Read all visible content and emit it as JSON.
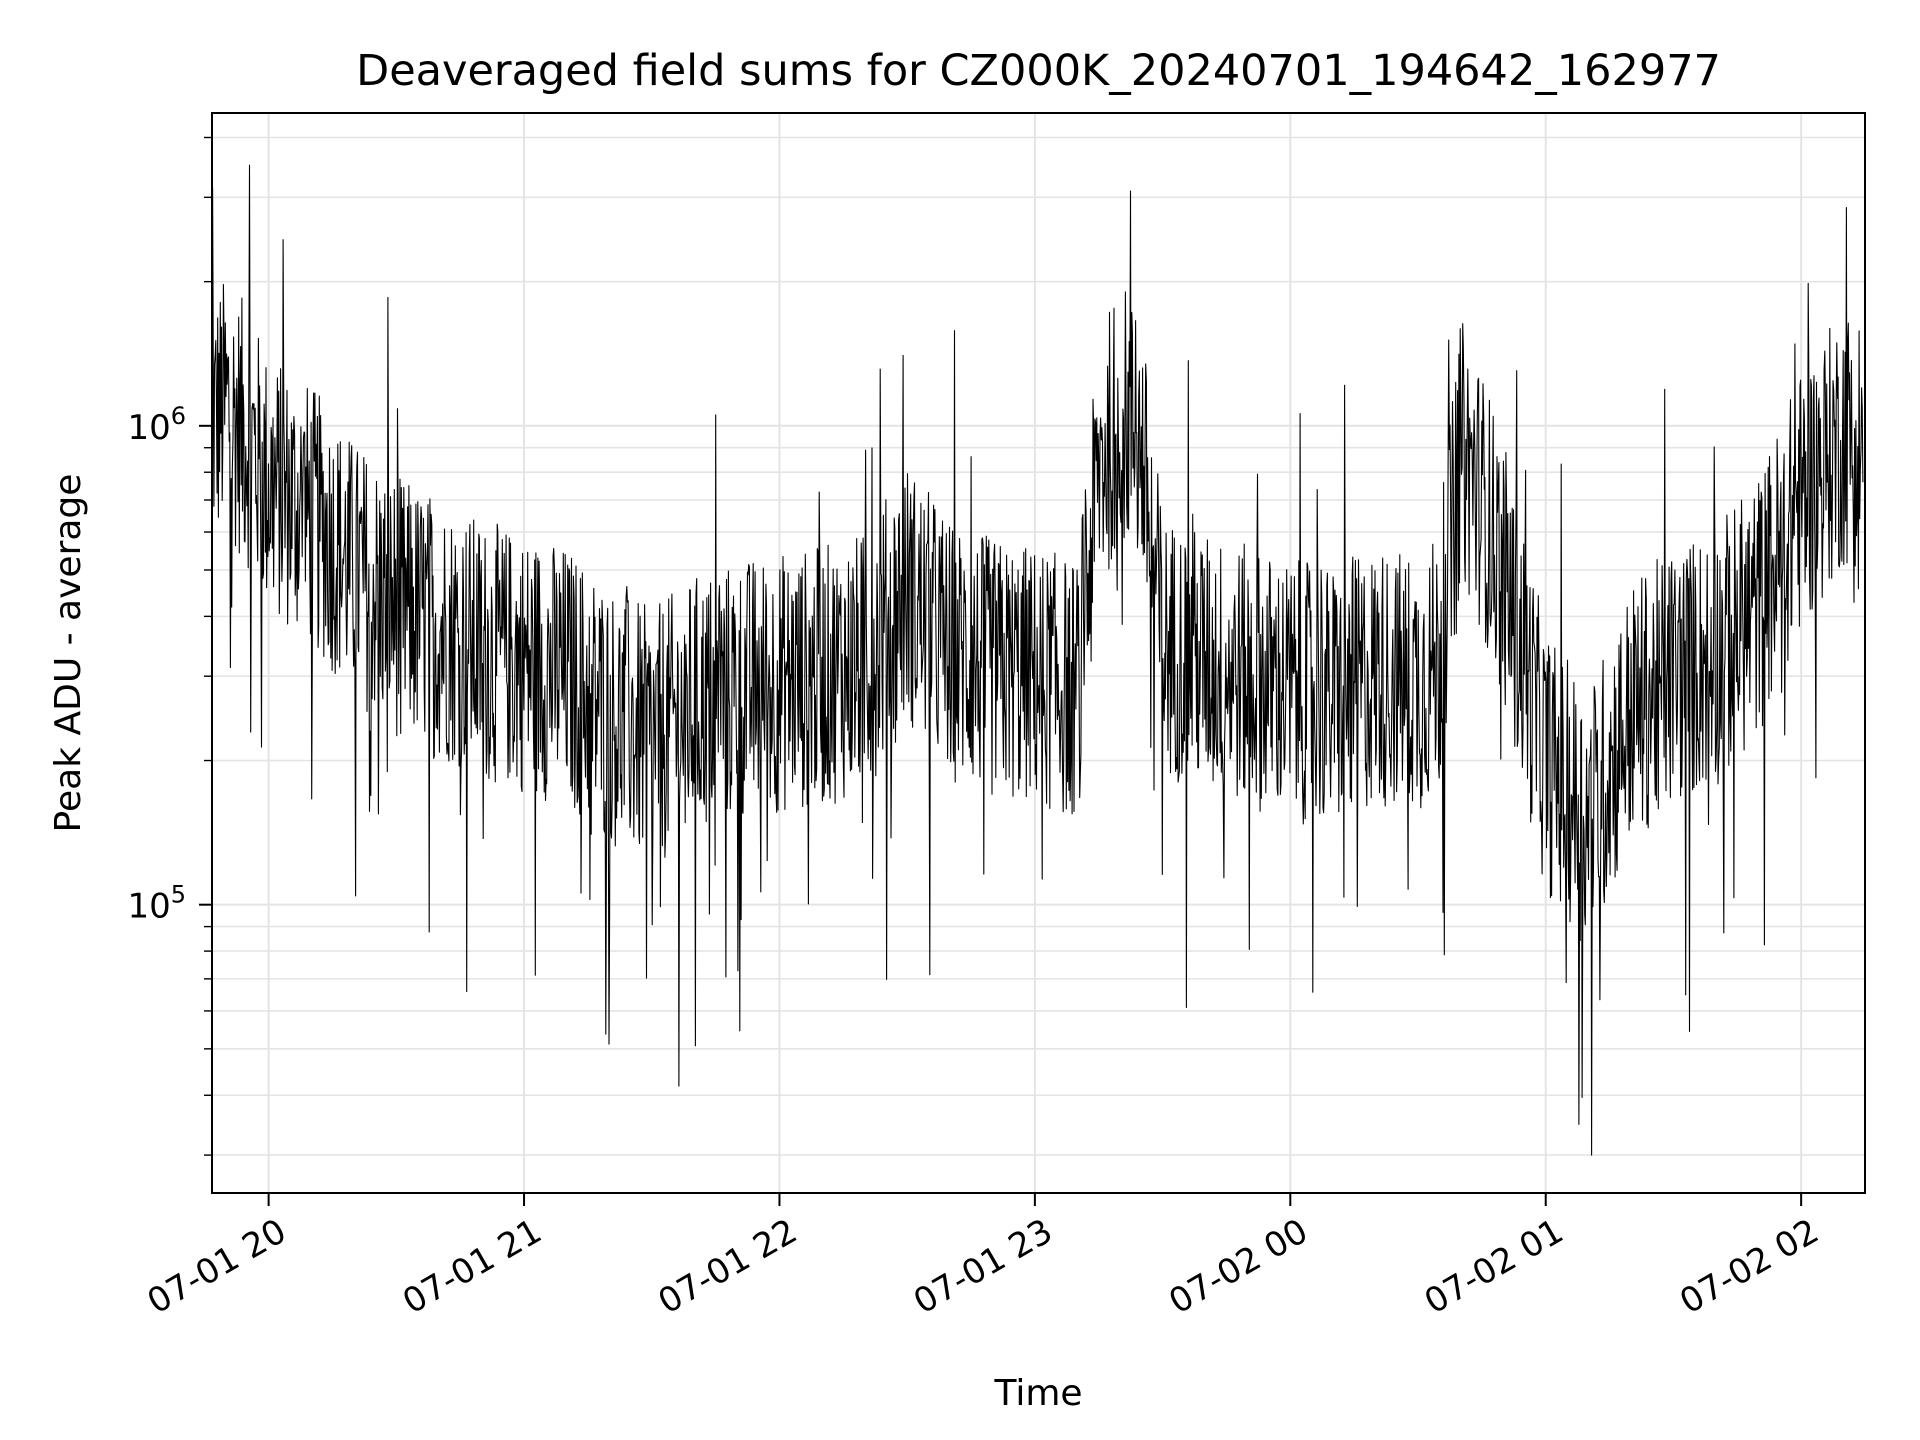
{
  "chart_data": {
    "type": "line",
    "title": "Deaveraged field sums for CZ000K_20240701_194642_162977",
    "xlabel": "Time",
    "ylabel": "Peak ADU - average",
    "yscale": "log",
    "ylim": [
      25000,
      4500000
    ],
    "xlim": [
      "2024-07-01 19:46:42",
      "2024-07-02 02:15:00"
    ],
    "grid": true,
    "line_color": "#000000",
    "x_ticks": [
      {
        "label": "07-01 20",
        "time": "2024-07-01 20:00"
      },
      {
        "label": "07-01 21",
        "time": "2024-07-01 21:00"
      },
      {
        "label": "07-01 22",
        "time": "2024-07-01 22:00"
      },
      {
        "label": "07-01 23",
        "time": "2024-07-01 23:00"
      },
      {
        "label": "07-02 00",
        "time": "2024-07-02 00:00"
      },
      {
        "label": "07-02 01",
        "time": "2024-07-02 01:00"
      },
      {
        "label": "07-02 02",
        "time": "2024-07-02 02:00"
      }
    ],
    "y_ticks": [
      {
        "base": "10",
        "exp": "5",
        "value": 100000
      },
      {
        "base": "10",
        "exp": "6",
        "value": 1000000
      }
    ],
    "series": [
      {
        "x": [
          "2024-07-01 19:46",
          "2024-07-01 19:50",
          "2024-07-01 19:55",
          "2024-07-01 20:00",
          "2024-07-01 20:10",
          "2024-07-01 20:20",
          "2024-07-01 20:30",
          "2024-07-01 20:40",
          "2024-07-01 20:50",
          "2024-07-01 21:00",
          "2024-07-01 21:10",
          "2024-07-01 21:20",
          "2024-07-01 21:30",
          "2024-07-01 21:40",
          "2024-07-01 21:50",
          "2024-07-01 22:00",
          "2024-07-01 22:10",
          "2024-07-01 22:20",
          "2024-07-01 22:30",
          "2024-07-01 22:40",
          "2024-07-01 22:50",
          "2024-07-01 23:00",
          "2024-07-01 23:10",
          "2024-07-01 23:15",
          "2024-07-01 23:20",
          "2024-07-01 23:25",
          "2024-07-01 23:30",
          "2024-07-01 23:40",
          "2024-07-01 23:50",
          "2024-07-02 00:00",
          "2024-07-02 00:10",
          "2024-07-02 00:20",
          "2024-07-02 00:30",
          "2024-07-02 00:35",
          "2024-07-02 00:40",
          "2024-07-02 00:45",
          "2024-07-02 00:50",
          "2024-07-02 01:00",
          "2024-07-02 01:10",
          "2024-07-02 01:20",
          "2024-07-02 01:30",
          "2024-07-02 01:40",
          "2024-07-02 01:50",
          "2024-07-02 02:00",
          "2024-07-02 02:10"
        ],
        "y": [
          1000000,
          1100000,
          950000,
          750000,
          650000,
          500000,
          420000,
          380000,
          340000,
          320000,
          300000,
          250000,
          220000,
          260000,
          280000,
          290000,
          300000,
          320000,
          450000,
          340000,
          310000,
          300000,
          280000,
          800000,
          1100000,
          900000,
          350000,
          320000,
          300000,
          280000,
          270000,
          300000,
          290000,
          320000,
          900000,
          700000,
          500000,
          200000,
          150000,
          250000,
          300000,
          330000,
          420000,
          700000,
          950000
        ]
      }
    ]
  }
}
